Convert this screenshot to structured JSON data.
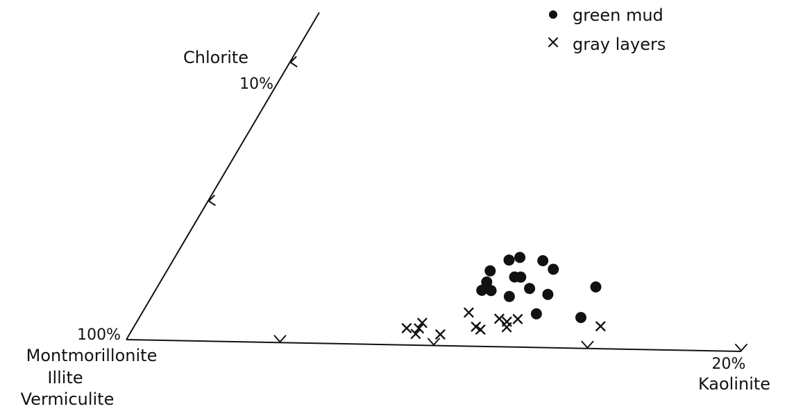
{
  "chart_data": {
    "type": "scatter",
    "diagram": "ternary-corner",
    "corner_labels": {
      "origin": [
        "Montmorillonite",
        "Illite",
        "Vermiculite"
      ],
      "x_axis": "Kaolinite",
      "y_axis": "Chlorite"
    },
    "tick_labels": {
      "origin": "100%",
      "x_end": "20%",
      "y_end": "10%"
    },
    "x_axis_range_percent": [
      0,
      20
    ],
    "y_axis_range_percent": [
      0,
      10
    ],
    "x_ticks_percent": [
      5,
      10,
      15,
      20
    ],
    "y_ticks_percent": [
      5,
      10
    ],
    "legend": {
      "position": "top-right",
      "entries": [
        {
          "label": "green mud",
          "marker": "dot"
        },
        {
          "label": "gray layers",
          "marker": "x"
        }
      ]
    },
    "series": [
      {
        "name": "green mud",
        "marker": "dot",
        "color": "#111111",
        "points": [
          {
            "kaolinite": 10.4,
            "chlorite": 2.7
          },
          {
            "kaolinite": 10.8,
            "chlorite": 3.1
          },
          {
            "kaolinite": 11.1,
            "chlorite": 3.2
          },
          {
            "kaolinite": 11.9,
            "chlorite": 3.1
          },
          {
            "kaolinite": 12.4,
            "chlorite": 2.8
          },
          {
            "kaolinite": 10.5,
            "chlorite": 2.3
          },
          {
            "kaolinite": 10.5,
            "chlorite": 2.0
          },
          {
            "kaolinite": 10.8,
            "chlorite": 2.0
          },
          {
            "kaolinite": 11.3,
            "chlorite": 2.5
          },
          {
            "kaolinite": 11.5,
            "chlorite": 2.5
          },
          {
            "kaolinite": 12.0,
            "chlorite": 2.1
          },
          {
            "kaolinite": 11.5,
            "chlorite": 1.8
          },
          {
            "kaolinite": 12.7,
            "chlorite": 1.9
          },
          {
            "kaolinite": 14.1,
            "chlorite": 2.2
          },
          {
            "kaolinite": 12.7,
            "chlorite": 1.2
          },
          {
            "kaolinite": 14.2,
            "chlorite": 1.1
          }
        ]
      },
      {
        "name": "gray layers",
        "marker": "x",
        "color": "#111111",
        "points": [
          {
            "kaolinite": 8.8,
            "chlorite": 0.6
          },
          {
            "kaolinite": 9.2,
            "chlorite": 0.8
          },
          {
            "kaolinite": 9.2,
            "chlorite": 0.6
          },
          {
            "kaolinite": 9.2,
            "chlorite": 0.4
          },
          {
            "kaolinite": 10.0,
            "chlorite": 0.4
          },
          {
            "kaolinite": 10.5,
            "chlorite": 1.2
          },
          {
            "kaolinite": 11.0,
            "chlorite": 0.7
          },
          {
            "kaolinite": 11.2,
            "chlorite": 0.6
          },
          {
            "kaolinite": 11.6,
            "chlorite": 1.0
          },
          {
            "kaolinite": 11.9,
            "chlorite": 0.9
          },
          {
            "kaolinite": 12.0,
            "chlorite": 0.7
          },
          {
            "kaolinite": 12.2,
            "chlorite": 1.0
          },
          {
            "kaolinite": 15.0,
            "chlorite": 0.8
          }
        ]
      }
    ]
  }
}
